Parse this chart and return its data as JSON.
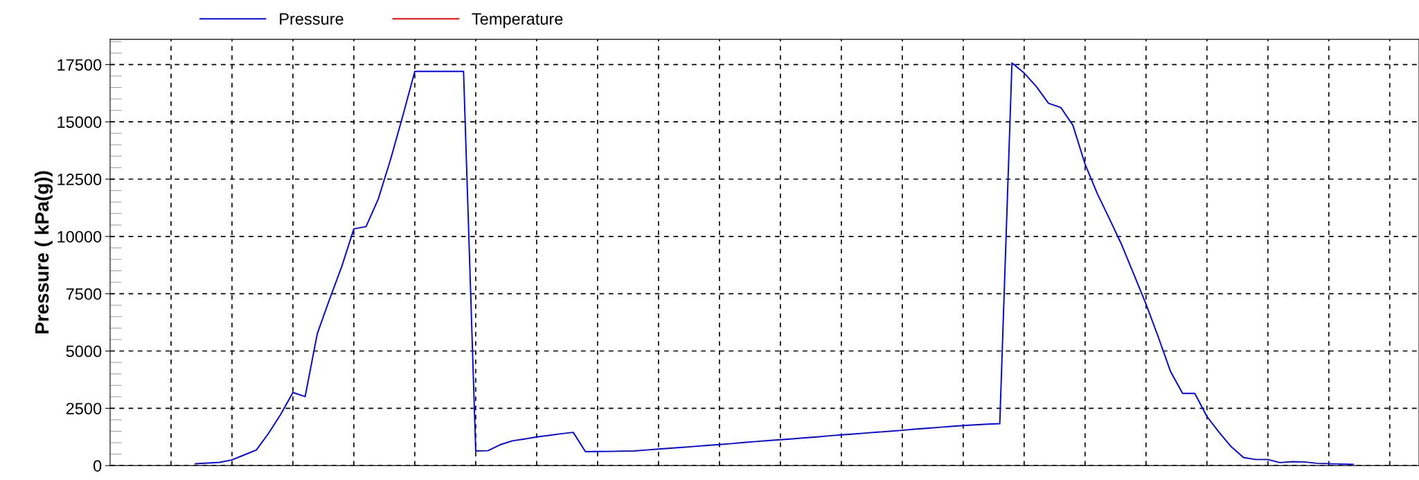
{
  "chart_data": {
    "type": "line",
    "ylabel": "Pressure ( kPa(g))",
    "categories": [
      null,
      null,
      null,
      null,
      null,
      null,
      null,
      null,
      null,
      null,
      null,
      null,
      null,
      null,
      null,
      null,
      null,
      null,
      null,
      null,
      null,
      null,
      null,
      null,
      null,
      null,
      null,
      null,
      null,
      null,
      null,
      null,
      null,
      null,
      null,
      null,
      null,
      null,
      null,
      null,
      null,
      null,
      null,
      null,
      null,
      null,
      null,
      null,
      null,
      null,
      null,
      null,
      null,
      null,
      null,
      null,
      null,
      null,
      null,
      null,
      null,
      null,
      null,
      null,
      null,
      null,
      null,
      null,
      null,
      null,
      null,
      null,
      null,
      null,
      null,
      null,
      null,
      null,
      null,
      null,
      null,
      null,
      null,
      null,
      null,
      null,
      null,
      null,
      null,
      null,
      null,
      null,
      null,
      null,
      null,
      null,
      null,
      null,
      null,
      null,
      null,
      null,
      null,
      null,
      null,
      null,
      null,
      null
    ],
    "series": [
      {
        "name": "Pressure",
        "color": "#0000ff",
        "values": [
          null,
          null,
          null,
          null,
          null,
          null,
          null,
          85,
          110,
          140,
          250,
          465,
          680,
          1410,
          2240,
          3190,
          3010,
          5760,
          7250,
          8680,
          10330,
          10430,
          11630,
          13340,
          15230,
          17200,
          17200,
          17200,
          17200,
          17200,
          640,
          650,
          910,
          1080,
          1160,
          1250,
          1320,
          1390,
          1450,
          610,
          615,
          620,
          630,
          640,
          680,
          720,
          760,
          800,
          840,
          880,
          920,
          960,
          1010,
          1050,
          1090,
          1130,
          1170,
          1210,
          1250,
          1300,
          1340,
          1380,
          1420,
          1460,
          1500,
          1540,
          1590,
          1630,
          1670,
          1710,
          1750,
          1780,
          1810,
          1830,
          17570,
          17130,
          16540,
          15810,
          15630,
          14850,
          13150,
          11870,
          10770,
          9640,
          8350,
          7050,
          5620,
          4120,
          3150,
          3150,
          2140,
          1450,
          820,
          350,
          265,
          265,
          130,
          170,
          160,
          100,
          85,
          70,
          55,
          null,
          null,
          null,
          null,
          null
        ]
      },
      {
        "name": "Temperature",
        "color": "#ff0000",
        "values": [
          null,
          null,
          null,
          null,
          null,
          null,
          null,
          null,
          null,
          null,
          null,
          null,
          null,
          null,
          null,
          null,
          null,
          null,
          null,
          null,
          null,
          null,
          null,
          null,
          null,
          null,
          null,
          null,
          null,
          null,
          null,
          null,
          null,
          null,
          null,
          null,
          null,
          null,
          null,
          null,
          null,
          null,
          null,
          null,
          null,
          null,
          null,
          null,
          null,
          null,
          null,
          null,
          null,
          null,
          null,
          null,
          null,
          null,
          null,
          null,
          null,
          null,
          null,
          null,
          null,
          null,
          null,
          null,
          null,
          null,
          null,
          null,
          null,
          null,
          null,
          null,
          null,
          null,
          null,
          null,
          null,
          null,
          null,
          null,
          null,
          null,
          null,
          null,
          null,
          null,
          null,
          null,
          null,
          null,
          null,
          null,
          null,
          null,
          null,
          null,
          null,
          null,
          null,
          null,
          null,
          null,
          null,
          null
        ]
      }
    ],
    "ylim": [
      0,
      18600
    ],
    "yticks": [
      0,
      2500,
      5000,
      7500,
      10000,
      12500,
      15000,
      17500
    ],
    "grid": true,
    "legend": "top left",
    "line_style": "solid",
    "marker": "none"
  }
}
